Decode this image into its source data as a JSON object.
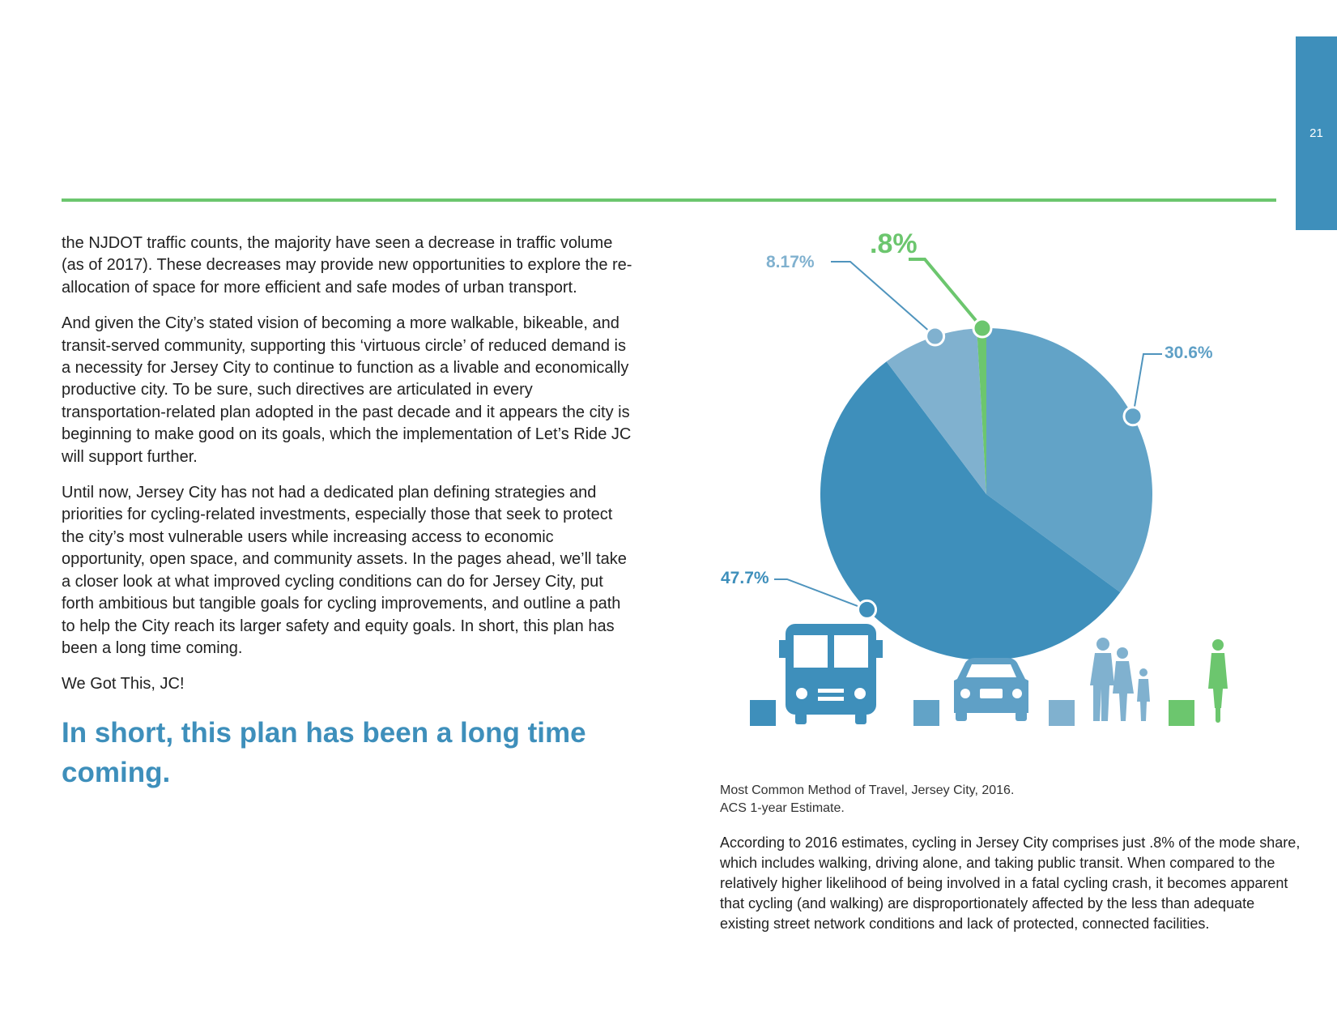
{
  "page_number": "21",
  "body": {
    "paragraphs": [
      "the NJDOT traffic counts, the majority have seen a decrease in traffic volume (as of 2017). These decreases may provide new opportunities to explore the re-allocation of space for more efficient and safe modes of urban transport.",
      "And given the City’s stated vision of becoming a more walkable, bikeable, and transit-served community, supporting this ‘virtuous circle’ of reduced demand is a necessity for Jersey City to continue to function as a livable and economically productive city. To be sure, such directives are articulated in every transportation-related plan adopted in the past decade and it appears the city is beginning to make good on its goals, which the implementation of Let’s Ride JC will support further.",
      "Until now, Jersey City has not had a dedicated plan defining strategies and priorities for cycling-related investments, especially those that seek to protect the city’s most vulnerable users while increasing access to economic opportunity, open space, and community assets. In the pages ahead, we’ll take a closer look at what improved cycling conditions can do for Jersey City, put forth ambitious but tangible goals for cycling improvements, and outline a path to help the City reach its larger safety and equity goals. In short, this plan has been a long time coming.",
      "We Got This, JC!"
    ],
    "pull_quote": "In short, this plan has been a long time coming."
  },
  "chart_data": {
    "type": "pie",
    "slices": [
      {
        "label": "30.6%",
        "value": 30.6,
        "color": "#62a3c7",
        "icon": "car-icon"
      },
      {
        "label": "47.7%",
        "value": 47.7,
        "color": "#3e8fbb",
        "icon": "bus-icon"
      },
      {
        "label": "8.17%",
        "value": 8.17,
        "color": "#80b1cf",
        "icon": "pedestrians-icon"
      },
      {
        "label": ".8%",
        "value": 0.8,
        "color": "#6cc66e",
        "icon": "cyclist-icon"
      }
    ],
    "title": "",
    "legend_placement": "bottom"
  },
  "caption": {
    "line1": "Most Common Method of Travel, Jersey City, 2016.",
    "line2": "ACS 1-year Estimate."
  },
  "note": "According to 2016 estimates, cycling in Jersey City comprises just .8% of the mode share, which includes walking, driving alone, and taking public transit. When compared to the relatively higher likelihood of being involved in a fatal cycling crash, it becomes apparent that cycling (and walking) are disproportionately affected by the less than adequate existing street network conditions and lack of protected, connected facilities."
}
